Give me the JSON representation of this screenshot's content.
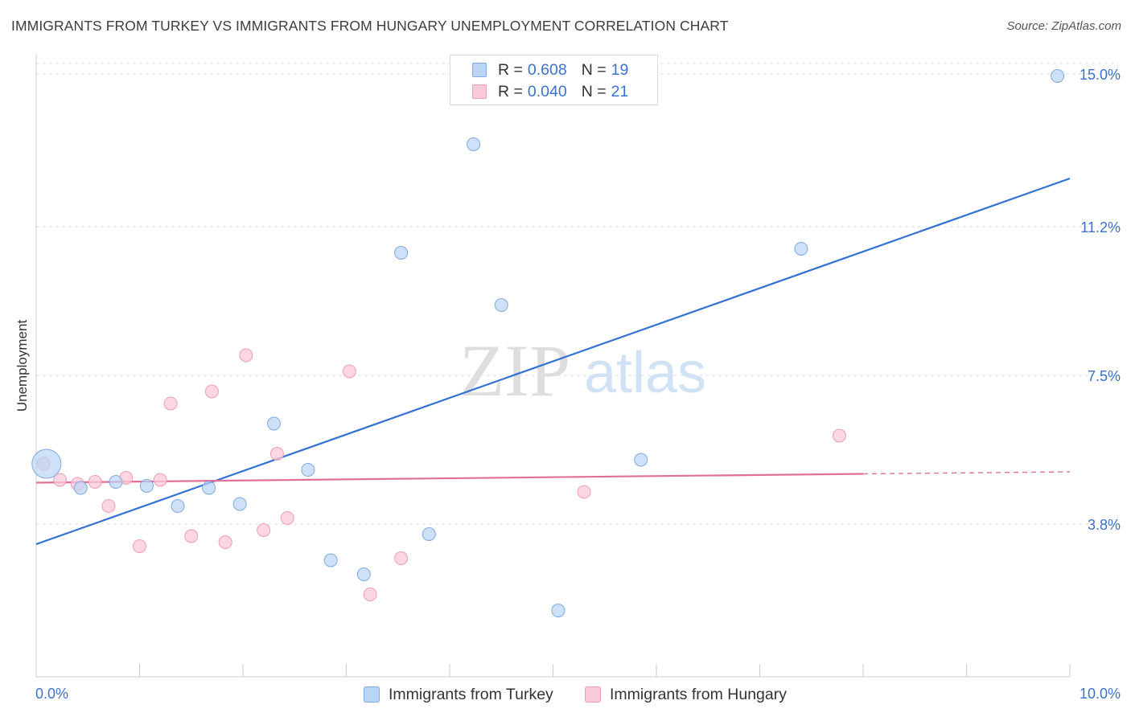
{
  "title": "IMMIGRANTS FROM TURKEY VS IMMIGRANTS FROM HUNGARY UNEMPLOYMENT CORRELATION CHART",
  "source": "Source: ZipAtlas.com",
  "watermark": {
    "zip": "ZIP",
    "atlas": "atlas"
  },
  "colors": {
    "turkey_fill": "#bad4f5",
    "turkey_stroke": "#7fa9e0",
    "turkey_line": "#3370d4",
    "hungary_fill": "#fbcad8",
    "hungary_stroke": "#ee9db6",
    "hungary_line": "#e07096",
    "grid": "#dddddd",
    "axis_text": "#3b72c9"
  },
  "legend": {
    "rows": [
      {
        "r_label": "R =",
        "r_value": "0.608",
        "n_label": "N =",
        "n_value": "19"
      },
      {
        "r_label": "R =",
        "r_value": "0.040",
        "n_label": "N =",
        "n_value": "21"
      }
    ]
  },
  "bottom_legend": {
    "turkey": "Immigrants from Turkey",
    "hungary": "Immigrants from Hungary"
  },
  "chart_data": {
    "type": "scatter",
    "title": "IMMIGRANTS FROM TURKEY VS IMMIGRANTS FROM HUNGARY UNEMPLOYMENT CORRELATION CHART",
    "xlabel": "",
    "ylabel": "Unemployment",
    "xlim": [
      0.0,
      10.0
    ],
    "ylim": [
      0.0,
      15.5
    ],
    "x_tick_labels": [
      "0.0%",
      "10.0%"
    ],
    "y_ticks": [
      3.8,
      7.5,
      11.2,
      15.0
    ],
    "y_tick_labels": [
      "3.8%",
      "7.5%",
      "11.2%",
      "15.0%"
    ],
    "series": [
      {
        "name": "Immigrants from Turkey",
        "points": [
          {
            "x": 0.1,
            "y": 5.3,
            "size": "large"
          },
          {
            "x": 0.43,
            "y": 4.7
          },
          {
            "x": 0.77,
            "y": 4.85
          },
          {
            "x": 1.07,
            "y": 4.75
          },
          {
            "x": 1.37,
            "y": 4.25
          },
          {
            "x": 1.67,
            "y": 4.7
          },
          {
            "x": 1.97,
            "y": 4.3
          },
          {
            "x": 2.3,
            "y": 6.3
          },
          {
            "x": 2.63,
            "y": 5.15
          },
          {
            "x": 2.85,
            "y": 2.9
          },
          {
            "x": 3.17,
            "y": 2.55
          },
          {
            "x": 3.53,
            "y": 10.55
          },
          {
            "x": 3.8,
            "y": 3.55
          },
          {
            "x": 4.23,
            "y": 13.25
          },
          {
            "x": 4.5,
            "y": 9.25
          },
          {
            "x": 5.05,
            "y": 1.65
          },
          {
            "x": 5.85,
            "y": 5.4
          },
          {
            "x": 7.4,
            "y": 10.65
          },
          {
            "x": 9.88,
            "y": 14.95
          }
        ],
        "trend": {
          "x0": 0.0,
          "y0": 3.3,
          "x1": 10.0,
          "y1": 12.4
        }
      },
      {
        "name": "Immigrants from Hungary",
        "points": [
          {
            "x": 0.07,
            "y": 5.3
          },
          {
            "x": 0.23,
            "y": 4.9
          },
          {
            "x": 0.4,
            "y": 4.8
          },
          {
            "x": 0.57,
            "y": 4.85
          },
          {
            "x": 0.7,
            "y": 4.25
          },
          {
            "x": 0.87,
            "y": 4.95
          },
          {
            "x": 1.0,
            "y": 3.25
          },
          {
            "x": 1.2,
            "y": 4.9
          },
          {
            "x": 1.3,
            "y": 6.8
          },
          {
            "x": 1.5,
            "y": 3.5
          },
          {
            "x": 1.7,
            "y": 7.1
          },
          {
            "x": 1.83,
            "y": 3.35
          },
          {
            "x": 2.03,
            "y": 8.0
          },
          {
            "x": 2.2,
            "y": 3.65
          },
          {
            "x": 2.33,
            "y": 5.55
          },
          {
            "x": 2.43,
            "y": 3.95
          },
          {
            "x": 3.03,
            "y": 7.6
          },
          {
            "x": 3.23,
            "y": 2.05
          },
          {
            "x": 3.53,
            "y": 2.95
          },
          {
            "x": 5.3,
            "y": 4.6
          },
          {
            "x": 7.77,
            "y": 6.0
          }
        ],
        "trend": {
          "x0": 0.0,
          "y0": 4.83,
          "x1": 8.0,
          "y1": 5.05
        },
        "trend_dashed": {
          "x0": 8.0,
          "y0": 5.05,
          "x1": 10.0,
          "y1": 5.1
        }
      }
    ]
  }
}
